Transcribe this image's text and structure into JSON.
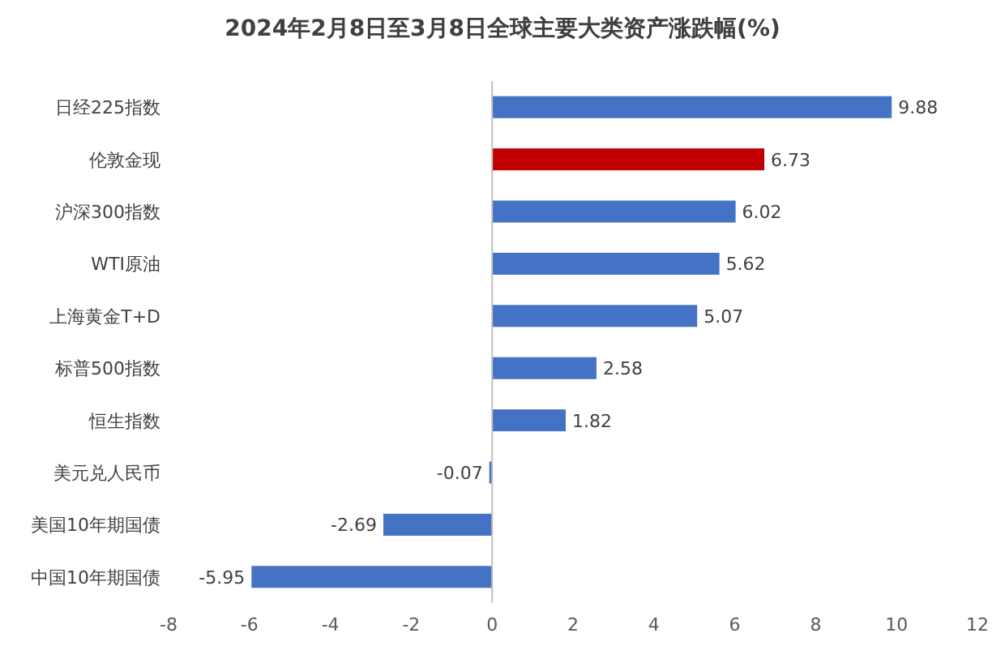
{
  "chart_data": {
    "type": "bar",
    "orientation": "horizontal",
    "title": "2024年2月8日至3月8日全球主要大类资产涨跌幅(%)",
    "categories": [
      "日经225指数",
      "伦敦金现",
      "沪深300指数",
      "WTI原油",
      "上海黄金T+D",
      "标普500指数",
      "恒生指数",
      "美元兑人民币",
      "美国10年期国债",
      "中国10年期国债"
    ],
    "values": [
      9.88,
      6.73,
      6.02,
      5.62,
      5.07,
      2.58,
      1.82,
      -0.07,
      -2.69,
      -5.95
    ],
    "colors": [
      "#4472c4",
      "#c00000",
      "#4472c4",
      "#4472c4",
      "#4472c4",
      "#4472c4",
      "#4472c4",
      "#4472c4",
      "#4472c4",
      "#4472c4"
    ],
    "xlim": [
      -8,
      12
    ],
    "xticks": [
      -8,
      -6,
      -4,
      -2,
      0,
      2,
      4,
      6,
      8,
      10,
      12
    ],
    "data_labels": true
  }
}
